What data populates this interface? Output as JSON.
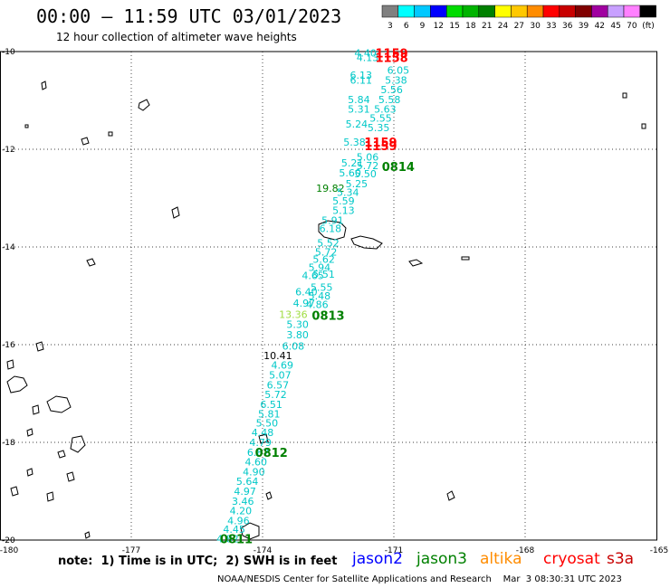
{
  "header": {
    "title": "00:00 – 11:59 UTC 03/01/2023",
    "subtitle": "12 hour collection of altimeter wave heights"
  },
  "legend": {
    "unit": "(ft)",
    "bins": [
      {
        "label": "3",
        "color": "#808080"
      },
      {
        "label": "6",
        "color": "#00ffff"
      },
      {
        "label": "9",
        "color": "#00c8ff"
      },
      {
        "label": "12",
        "color": "#0000ff"
      },
      {
        "label": "15",
        "color": "#00dc00"
      },
      {
        "label": "18",
        "color": "#00b400"
      },
      {
        "label": "21",
        "color": "#008000"
      },
      {
        "label": "24",
        "color": "#ffff00"
      },
      {
        "label": "27",
        "color": "#ffc800"
      },
      {
        "label": "30",
        "color": "#ff8c00"
      },
      {
        "label": "33",
        "color": "#ff0000"
      },
      {
        "label": "36",
        "color": "#c80000"
      },
      {
        "label": "39",
        "color": "#800000"
      },
      {
        "label": "42",
        "color": "#a000a0"
      },
      {
        "label": "45",
        "color": "#c8a0ff"
      },
      {
        "label": "70",
        "color": "#ff80ff"
      },
      {
        "label": "",
        "color": "#000000"
      }
    ]
  },
  "axes": {
    "lon_labels": [
      "-180",
      "-177",
      "-174",
      "-171",
      "-168",
      "-165"
    ],
    "lat_labels": [
      "-10",
      "-12",
      "-14",
      "-16",
      "-18",
      "-20"
    ]
  },
  "track_times": [
    {
      "label": "1159",
      "color": "#ff0000",
      "lon": -171.05,
      "lat": -10.03
    },
    {
      "label": "1158",
      "color": "#ff0000",
      "lon": -171.05,
      "lat": -10.12
    },
    {
      "label": "1159",
      "color": "#ff0000",
      "lon": -171.3,
      "lat": -11.85
    },
    {
      "label": "1159",
      "color": "#ff0000",
      "lon": -171.3,
      "lat": -11.93
    },
    {
      "label": "0814",
      "color": "#008000",
      "lon": -170.9,
      "lat": -12.35
    },
    {
      "label": "0813",
      "color": "#008000",
      "lon": -172.5,
      "lat": -15.4
    },
    {
      "label": "0812",
      "color": "#008000",
      "lon": -173.8,
      "lat": -18.2
    },
    {
      "label": "0811",
      "color": "#008000",
      "lon": -174.6,
      "lat": -19.97
    }
  ],
  "wave_heights": [
    {
      "v": "4.40",
      "lon": -171.65,
      "lat": -10.03,
      "c": "#00c8c8"
    },
    {
      "v": "4.13",
      "lon": -171.6,
      "lat": -10.12,
      "c": "#00c8c8"
    },
    {
      "v": "6.13",
      "lon": -171.75,
      "lat": -10.48,
      "c": "#00c8c8"
    },
    {
      "v": "6.11",
      "lon": -171.75,
      "lat": -10.58,
      "c": "#00c8c8"
    },
    {
      "v": "6.05",
      "lon": -170.9,
      "lat": -10.38,
      "c": "#00c8c8"
    },
    {
      "v": "5.38",
      "lon": -170.95,
      "lat": -10.58,
      "c": "#00c8c8"
    },
    {
      "v": "5.56",
      "lon": -171.05,
      "lat": -10.78,
      "c": "#00c8c8"
    },
    {
      "v": "5.84",
      "lon": -171.8,
      "lat": -10.98,
      "c": "#00c8c8"
    },
    {
      "v": "5.58",
      "lon": -171.1,
      "lat": -10.98,
      "c": "#00c8c8"
    },
    {
      "v": "5.31",
      "lon": -171.8,
      "lat": -11.18,
      "c": "#00c8c8"
    },
    {
      "v": "5.63",
      "lon": -171.2,
      "lat": -11.18,
      "c": "#00c8c8"
    },
    {
      "v": "5.55",
      "lon": -171.3,
      "lat": -11.36,
      "c": "#00c8c8"
    },
    {
      "v": "5.24",
      "lon": -171.85,
      "lat": -11.48,
      "c": "#00c8c8"
    },
    {
      "v": "5.35",
      "lon": -171.35,
      "lat": -11.56,
      "c": "#00c8c8"
    },
    {
      "v": "5.38",
      "lon": -171.9,
      "lat": -11.85,
      "c": "#00c8c8"
    },
    {
      "v": "5.06",
      "lon": -171.6,
      "lat": -12.16,
      "c": "#00c8c8"
    },
    {
      "v": "5.21",
      "lon": -171.95,
      "lat": -12.28,
      "c": "#00c8c8"
    },
    {
      "v": "5.72",
      "lon": -171.6,
      "lat": -12.33,
      "c": "#00c8c8"
    },
    {
      "v": "5.60",
      "lon": -172.0,
      "lat": -12.48,
      "c": "#00c8c8"
    },
    {
      "v": "5.50",
      "lon": -171.65,
      "lat": -12.5,
      "c": "#00c8c8"
    },
    {
      "v": "5.25",
      "lon": -171.85,
      "lat": -12.7,
      "c": "#00c8c8"
    },
    {
      "v": "19.82",
      "lon": -172.45,
      "lat": -12.8,
      "c": "#008000"
    },
    {
      "v": "5.34",
      "lon": -172.05,
      "lat": -12.88,
      "c": "#00c8c8"
    },
    {
      "v": "5.59",
      "lon": -172.15,
      "lat": -13.06,
      "c": "#00c8c8"
    },
    {
      "v": "5.13",
      "lon": -172.15,
      "lat": -13.25,
      "c": "#00c8c8"
    },
    {
      "v": "5.91",
      "lon": -172.4,
      "lat": -13.45,
      "c": "#00c8c8"
    },
    {
      "v": "6.18",
      "lon": -172.45,
      "lat": -13.62,
      "c": "#00c8c8"
    },
    {
      "v": "5.52",
      "lon": -172.5,
      "lat": -13.92,
      "c": "#00c8c8"
    },
    {
      "v": "5.72",
      "lon": -172.55,
      "lat": -14.1,
      "c": "#00c8c8"
    },
    {
      "v": "5.62",
      "lon": -172.6,
      "lat": -14.25,
      "c": "#00c8c8"
    },
    {
      "v": "5.94",
      "lon": -172.7,
      "lat": -14.42,
      "c": "#00c8c8"
    },
    {
      "v": "4.65",
      "lon": -172.85,
      "lat": -14.58,
      "c": "#00c8c8"
    },
    {
      "v": "5.51",
      "lon": -172.6,
      "lat": -14.56,
      "c": "#00c8c8"
    },
    {
      "v": "5.55",
      "lon": -172.65,
      "lat": -14.82,
      "c": "#00c8c8"
    },
    {
      "v": "6.40",
      "lon": -173.0,
      "lat": -14.92,
      "c": "#00c8c8"
    },
    {
      "v": "5.48",
      "lon": -172.7,
      "lat": -15.0,
      "c": "#00c8c8"
    },
    {
      "v": "4.97",
      "lon": -173.05,
      "lat": -15.15,
      "c": "#00c8c8"
    },
    {
      "v": "4.86",
      "lon": -172.75,
      "lat": -15.18,
      "c": "#00c8c8"
    },
    {
      "v": "13.36",
      "lon": -173.3,
      "lat": -15.38,
      "c": "#a0dc40"
    },
    {
      "v": "5.30",
      "lon": -173.2,
      "lat": -15.58,
      "c": "#00c8c8"
    },
    {
      "v": "3.80",
      "lon": -173.2,
      "lat": -15.8,
      "c": "#00c8c8"
    },
    {
      "v": "6.08",
      "lon": -173.3,
      "lat": -16.03,
      "c": "#00c8c8"
    },
    {
      "v": "10.41",
      "lon": -173.65,
      "lat": -16.22,
      "c": "#000000"
    },
    {
      "v": "4.69",
      "lon": -173.55,
      "lat": -16.42,
      "c": "#00c8c8"
    },
    {
      "v": "5.07",
      "lon": -173.6,
      "lat": -16.62,
      "c": "#00c8c8"
    },
    {
      "v": "6.57",
      "lon": -173.65,
      "lat": -16.82,
      "c": "#00c8c8"
    },
    {
      "v": "5.72",
      "lon": -173.7,
      "lat": -17.02,
      "c": "#00c8c8"
    },
    {
      "v": "6.51",
      "lon": -173.8,
      "lat": -17.22,
      "c": "#00c8c8"
    },
    {
      "v": "5.81",
      "lon": -173.85,
      "lat": -17.42,
      "c": "#00c8c8"
    },
    {
      "v": "5.50",
      "lon": -173.9,
      "lat": -17.6,
      "c": "#00c8c8"
    },
    {
      "v": "4.48",
      "lon": -174.0,
      "lat": -17.8,
      "c": "#00c8c8"
    },
    {
      "v": "4.79",
      "lon": -174.05,
      "lat": -18.0,
      "c": "#00c8c8"
    },
    {
      "v": "6.87",
      "lon": -174.1,
      "lat": -18.2,
      "c": "#00c8c8"
    },
    {
      "v": "4.60",
      "lon": -174.15,
      "lat": -18.4,
      "c": "#00c8c8"
    },
    {
      "v": "4.90",
      "lon": -174.2,
      "lat": -18.6,
      "c": "#00c8c8"
    },
    {
      "v": "5.64",
      "lon": -174.35,
      "lat": -18.8,
      "c": "#00c8c8"
    },
    {
      "v": "4.97",
      "lon": -174.4,
      "lat": -19.0,
      "c": "#00c8c8"
    },
    {
      "v": "3.46",
      "lon": -174.45,
      "lat": -19.2,
      "c": "#00c8c8"
    },
    {
      "v": "4.20",
      "lon": -174.5,
      "lat": -19.4,
      "c": "#00c8c8"
    },
    {
      "v": "4.96",
      "lon": -174.55,
      "lat": -19.6,
      "c": "#00c8c8"
    },
    {
      "v": "4.45",
      "lon": -174.65,
      "lat": -19.78,
      "c": "#00c8c8"
    },
    {
      "v": "4.82",
      "lon": -174.8,
      "lat": -19.97,
      "c": "#00c8c8"
    }
  ],
  "note": "note:  1) Time is in UTC;  2) SWH is in feet",
  "satellites": [
    {
      "label": "jason2",
      "color": "#0000ff"
    },
    {
      "label": "jason3",
      "color": "#008000"
    },
    {
      "label": "altika",
      "color": "#ff8c00"
    },
    {
      "label": "cryosat",
      "color": "#ff0000"
    },
    {
      "label": "s3a",
      "color": "#c80000"
    }
  ],
  "footer": "NOAA/NESDIS Center for Satellite Applications and Research    Mar  3 08:30:31 UTC 2023"
}
